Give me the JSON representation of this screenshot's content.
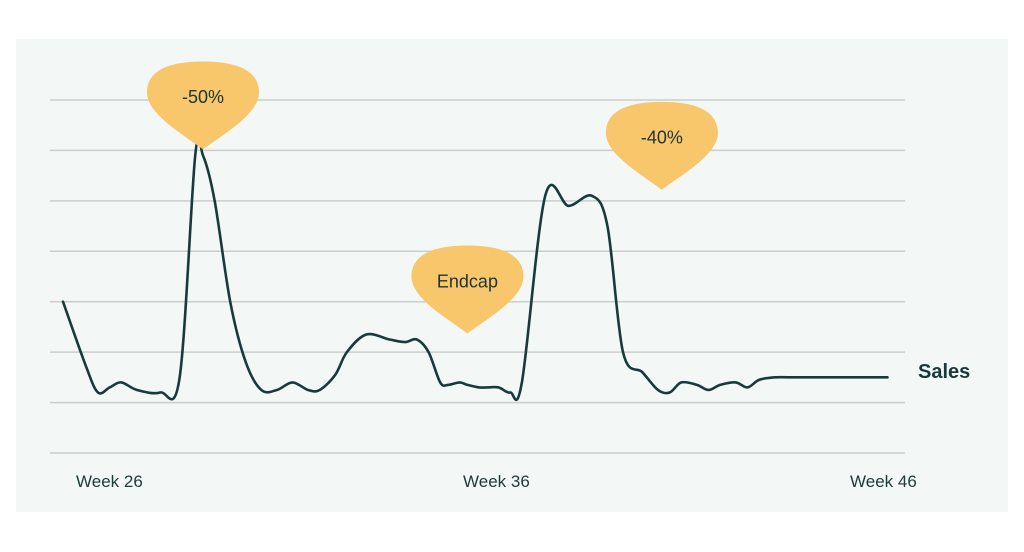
{
  "chart_data": {
    "type": "line",
    "title": "",
    "xlabel": "",
    "ylabel": "",
    "x_ticks": [
      "Week 26",
      "Week 36",
      "Week 46"
    ],
    "xlim": [
      25.6,
      47.2
    ],
    "ylim": [
      0,
      7
    ],
    "grid": true,
    "series": [
      {
        "name": "Sales",
        "color": "#173b3b",
        "x": [
          25.6,
          26.2,
          26.5,
          26.8,
          27.1,
          27.5,
          28.1,
          28.6,
          29.0,
          29.2,
          29.5,
          29.9,
          30.3,
          30.7,
          31.1,
          31.5,
          31.9,
          32.2,
          32.6,
          32.9,
          33.4,
          34.0,
          34.4,
          34.7,
          35.0,
          35.3,
          35.5,
          35.8,
          36.0,
          36.3,
          36.5,
          36.8,
          37.1,
          37.4,
          38.0,
          38.6,
          39.2,
          39.6,
          40.0,
          40.5,
          40.9,
          41.2,
          41.5,
          41.9,
          42.2,
          42.5,
          42.9,
          43.2,
          43.5,
          43.9,
          44.4,
          44.9,
          45.3,
          45.8,
          46.4,
          46.8
        ],
        "values": [
          3.0,
          1.7,
          1.2,
          1.3,
          1.4,
          1.25,
          1.2,
          1.5,
          5.9,
          5.9,
          5.0,
          3.0,
          1.8,
          1.25,
          1.25,
          1.4,
          1.25,
          1.25,
          1.55,
          2.0,
          2.35,
          2.25,
          2.2,
          2.25,
          2.0,
          1.4,
          1.35,
          1.4,
          1.35,
          1.3,
          1.3,
          1.3,
          1.2,
          1.4,
          5.1,
          4.9,
          5.1,
          4.5,
          2.0,
          1.6,
          1.25,
          1.2,
          1.4,
          1.35,
          1.25,
          1.35,
          1.4,
          1.3,
          1.45,
          1.5,
          1.5,
          1.5,
          1.5,
          1.5,
          1.5,
          1.5
        ],
        "label": "Sales"
      }
    ],
    "annotations": [
      {
        "text": "-50%",
        "x": 29.2,
        "y": 5.9
      },
      {
        "text": "Endcap",
        "x": 36.0,
        "y": 2.25
      },
      {
        "text": "-40%",
        "x": 41.0,
        "y": 5.1
      }
    ],
    "badge_color": "#f9c76b"
  }
}
